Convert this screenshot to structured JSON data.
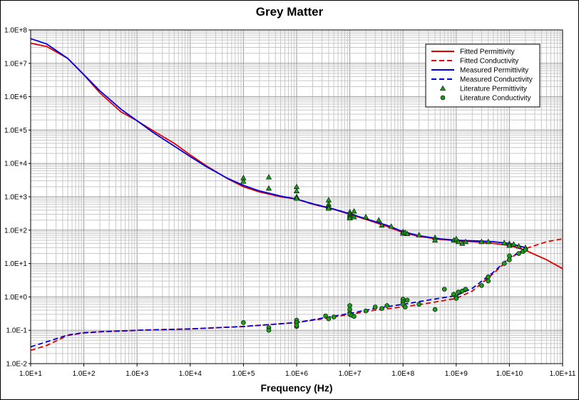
{
  "chart_data": {
    "type": "line",
    "title": "Grey Matter",
    "xlabel": "Frequency (Hz)",
    "ylabel": "",
    "x_scale": "log",
    "y_scale": "log",
    "xlim": [
      10,
      100000000000
    ],
    "ylim": [
      0.01,
      100000000
    ],
    "grid": true,
    "legend_position": "top-right",
    "x_tick_labels": [
      "1.0E+1",
      "1.0E+2",
      "1.0E+3",
      "1.0E+4",
      "1.0E+5",
      "1.0E+6",
      "1.0E+7",
      "1.0E+8",
      "1.0E+9",
      "1.0E+10",
      "1.0E+11"
    ],
    "y_tick_labels": [
      "1.0E-2",
      "1.0E-1",
      "1.0E+0",
      "1.0E+1",
      "1.0E+2",
      "1.0E+3",
      "1.0E+4",
      "1.0E+5",
      "1.0E+6",
      "1.0E+7",
      "1.0E+8"
    ],
    "series": [
      {
        "name": "Fitted Permittivity",
        "kind": "line",
        "color": "#e00000",
        "dash": false,
        "x": [
          10,
          20,
          50,
          100,
          200,
          500,
          1000,
          2000,
          5000,
          10000,
          20000,
          50000,
          100000,
          200000,
          500000,
          1000000,
          2000000,
          5000000,
          10000000,
          20000000,
          50000000,
          100000000,
          200000000,
          500000000,
          1000000000,
          2000000000,
          5000000000,
          10000000000,
          20000000000,
          50000000000,
          100000000000
        ],
        "y": [
          40000000,
          32000000,
          14000000,
          4500000,
          1300000,
          350000,
          190000,
          95000,
          40000,
          18000,
          8500,
          3500,
          2000,
          1400,
          1000,
          850,
          600,
          420,
          300,
          210,
          130,
          85,
          65,
          53,
          48,
          45,
          40,
          35,
          25,
          13,
          7
        ]
      },
      {
        "name": "Fitted Conductivity",
        "kind": "line",
        "color": "#e00000",
        "dash": true,
        "x": [
          10,
          20,
          50,
          100,
          200,
          500,
          1000,
          10000,
          100000,
          1000000,
          3000000,
          10000000,
          30000000,
          100000000,
          300000000,
          1000000000,
          2000000000,
          5000000000,
          10000000000,
          20000000000,
          50000000000,
          100000000000
        ],
        "y": [
          0.025,
          0.035,
          0.07,
          0.083,
          0.09,
          0.095,
          0.1,
          0.11,
          0.13,
          0.17,
          0.22,
          0.3,
          0.4,
          0.5,
          0.65,
          0.9,
          1.5,
          5,
          14,
          28,
          45,
          55
        ]
      },
      {
        "name": "Measured Permittivity",
        "kind": "line",
        "color": "#0000dd",
        "dash": false,
        "x": [
          10,
          20,
          50,
          100,
          200,
          500,
          1000,
          2000,
          5000,
          10000,
          20000,
          50000,
          100000,
          200000,
          500000,
          1000000,
          2000000,
          5000000,
          10000000,
          20000000,
          50000000,
          100000000,
          200000000,
          500000000,
          1000000000,
          2000000000,
          5000000000,
          10000000000,
          20000000000
        ],
        "y": [
          55000000,
          38000000,
          14000000,
          4600000,
          1500000,
          420000,
          190000,
          85000,
          33000,
          16000,
          8000,
          3600,
          2200,
          1500,
          1050,
          850,
          620,
          430,
          310,
          220,
          140,
          90,
          68,
          55,
          50,
          48,
          45,
          40,
          30
        ]
      },
      {
        "name": "Measured Conductivity",
        "kind": "line",
        "color": "#0000dd",
        "dash": true,
        "x": [
          10,
          20,
          50,
          100,
          200,
          500,
          1000,
          10000,
          100000,
          1000000,
          3000000,
          10000000,
          30000000,
          100000000,
          300000000,
          1000000000,
          2000000000,
          5000000000,
          10000000000,
          20000000000
        ],
        "y": [
          0.032,
          0.045,
          0.072,
          0.085,
          0.09,
          0.095,
          0.1,
          0.11,
          0.13,
          0.17,
          0.23,
          0.32,
          0.45,
          0.6,
          0.8,
          1.1,
          1.8,
          5.5,
          15,
          27
        ]
      },
      {
        "name": "Literature Permittivity",
        "kind": "scatter",
        "marker": "triangle",
        "color": "#1c9a1c",
        "x": [
          100000,
          100000,
          300000,
          300000,
          1000000,
          1000000,
          1000000,
          1000000,
          4000000,
          4000000,
          4000000,
          4000000,
          10000000,
          10000000,
          10000000,
          10000000,
          12000000,
          12000000,
          20000000,
          35000000,
          40000000,
          60000000,
          100000000,
          100000000,
          110000000,
          120000000,
          200000000,
          400000000,
          400000000,
          900000000,
          1000000000,
          1000000000,
          1100000000,
          1300000000,
          1500000000,
          3000000000,
          4000000000,
          8000000000,
          10000000000,
          10000000000,
          12000000000,
          15000000000,
          20000000000
        ],
        "y": [
          3700,
          2900,
          3900,
          1800,
          2000,
          1500,
          1000,
          900,
          800,
          600,
          500,
          450,
          350,
          300,
          260,
          230,
          370,
          250,
          250,
          200,
          140,
          130,
          90,
          80,
          85,
          78,
          72,
          60,
          50,
          50,
          50,
          55,
          45,
          40,
          45,
          45,
          45,
          42,
          40,
          35,
          38,
          33,
          30
        ]
      },
      {
        "name": "Literature Conductivity",
        "kind": "scatter",
        "marker": "circle",
        "color": "#1c9a1c",
        "x": [
          100000,
          300000,
          300000,
          1000000,
          1000000,
          1000000,
          1000000,
          3500000,
          4000000,
          5000000,
          10000000,
          10000000,
          10000000,
          10000000,
          11000000,
          12000000,
          20000000,
          30000000,
          40000000,
          50000000,
          100000000,
          100000000,
          100000000,
          110000000,
          120000000,
          200000000,
          400000000,
          600000000,
          900000000,
          1000000000,
          1000000000,
          1100000000,
          1300000000,
          1500000000,
          3000000000,
          4000000000,
          4000000000,
          8000000000,
          10000000000,
          10000000000,
          15000000000,
          18000000000,
          20000000000
        ],
        "y": [
          0.17,
          0.12,
          0.1,
          0.2,
          0.17,
          0.13,
          0.14,
          0.27,
          0.22,
          0.25,
          0.55,
          0.42,
          0.33,
          0.3,
          0.28,
          0.26,
          0.38,
          0.5,
          0.45,
          0.55,
          0.85,
          0.7,
          0.6,
          0.5,
          0.8,
          0.6,
          0.42,
          1.7,
          1.2,
          1.0,
          0.9,
          1.4,
          1.5,
          1.7,
          2.2,
          3.0,
          4.0,
          10,
          13,
          17,
          20,
          23,
          26
        ]
      }
    ]
  }
}
